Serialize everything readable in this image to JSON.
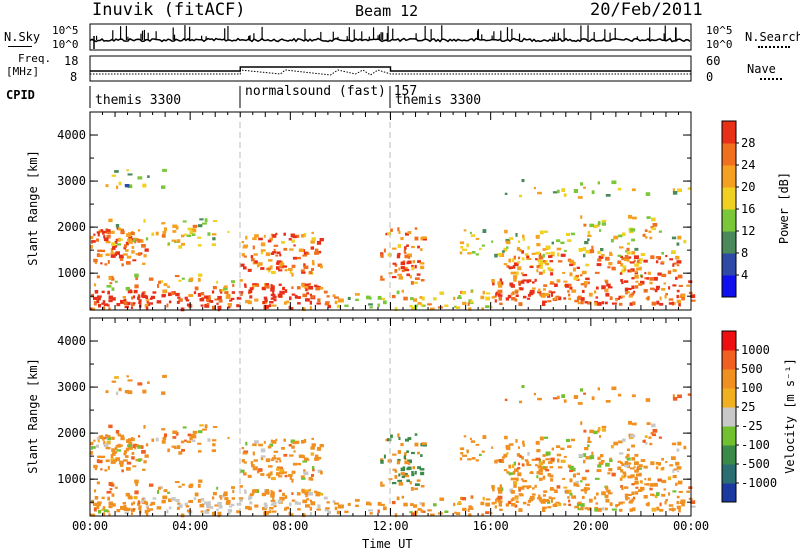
{
  "header": {
    "station": "Inuvik (fitACF)",
    "beam": "Beam 12",
    "date": "20/Feb/2011"
  },
  "top_panel": {
    "left_label": "N.Sky",
    "right_label": "N.Search",
    "left_ticks": [
      "10^5",
      "10^0"
    ],
    "right_ticks": [
      "10^5",
      "10^0"
    ]
  },
  "freq_panel": {
    "left_label_1": "Freq.",
    "left_label_2": "[MHz]",
    "left_ticks": [
      "18",
      "8"
    ],
    "right_label": "Nave",
    "right_ticks": [
      "60",
      "0"
    ]
  },
  "cpid": {
    "label": "CPID",
    "segments": [
      {
        "name": "themis 3300",
        "start_hour": 0
      },
      {
        "name": "normalsound (fast) 157",
        "start_hour": 6
      },
      {
        "name": "themis 3300",
        "start_hour": 12
      }
    ]
  },
  "chart_data": [
    {
      "type": "heatmap",
      "title": "",
      "ylabel": "Slant Range [km]",
      "xlabel": "",
      "xlim": [
        0,
        24
      ],
      "ylim": [
        200,
        4500
      ],
      "yticks": [
        "1000",
        "2000",
        "3000",
        "4000"
      ],
      "colorbar": {
        "label": "Power [dB]",
        "ticks": [
          "4",
          "8",
          "12",
          "16",
          "20",
          "24",
          "28"
        ],
        "colors": [
          "#1010ee",
          "#2c4aa6",
          "#4a8a5a",
          "#7ac83a",
          "#f0d020",
          "#f5a020",
          "#f07020",
          "#e83018"
        ]
      }
    },
    {
      "type": "heatmap",
      "title": "",
      "ylabel": "Slant Range [km]",
      "xlabel": "Time UT",
      "xlim": [
        0,
        24
      ],
      "ylim": [
        200,
        4500
      ],
      "yticks": [
        "1000",
        "2000",
        "3000",
        "4000"
      ],
      "xticks": [
        "00:00",
        "04:00",
        "08:00",
        "12:00",
        "16:00",
        "20:00",
        "00:00"
      ],
      "colorbar": {
        "label": "Velocity [m s⁻¹]",
        "ticks": [
          "1000",
          "500",
          "100",
          "25",
          "-25",
          "-100",
          "-500",
          "-1000"
        ],
        "colors": [
          "#1a3aa0",
          "#2a6e72",
          "#3a8a4a",
          "#70c030",
          "#c8c8c8",
          "#f0b020",
          "#f09020",
          "#f06020",
          "#ee1010"
        ]
      }
    }
  ]
}
